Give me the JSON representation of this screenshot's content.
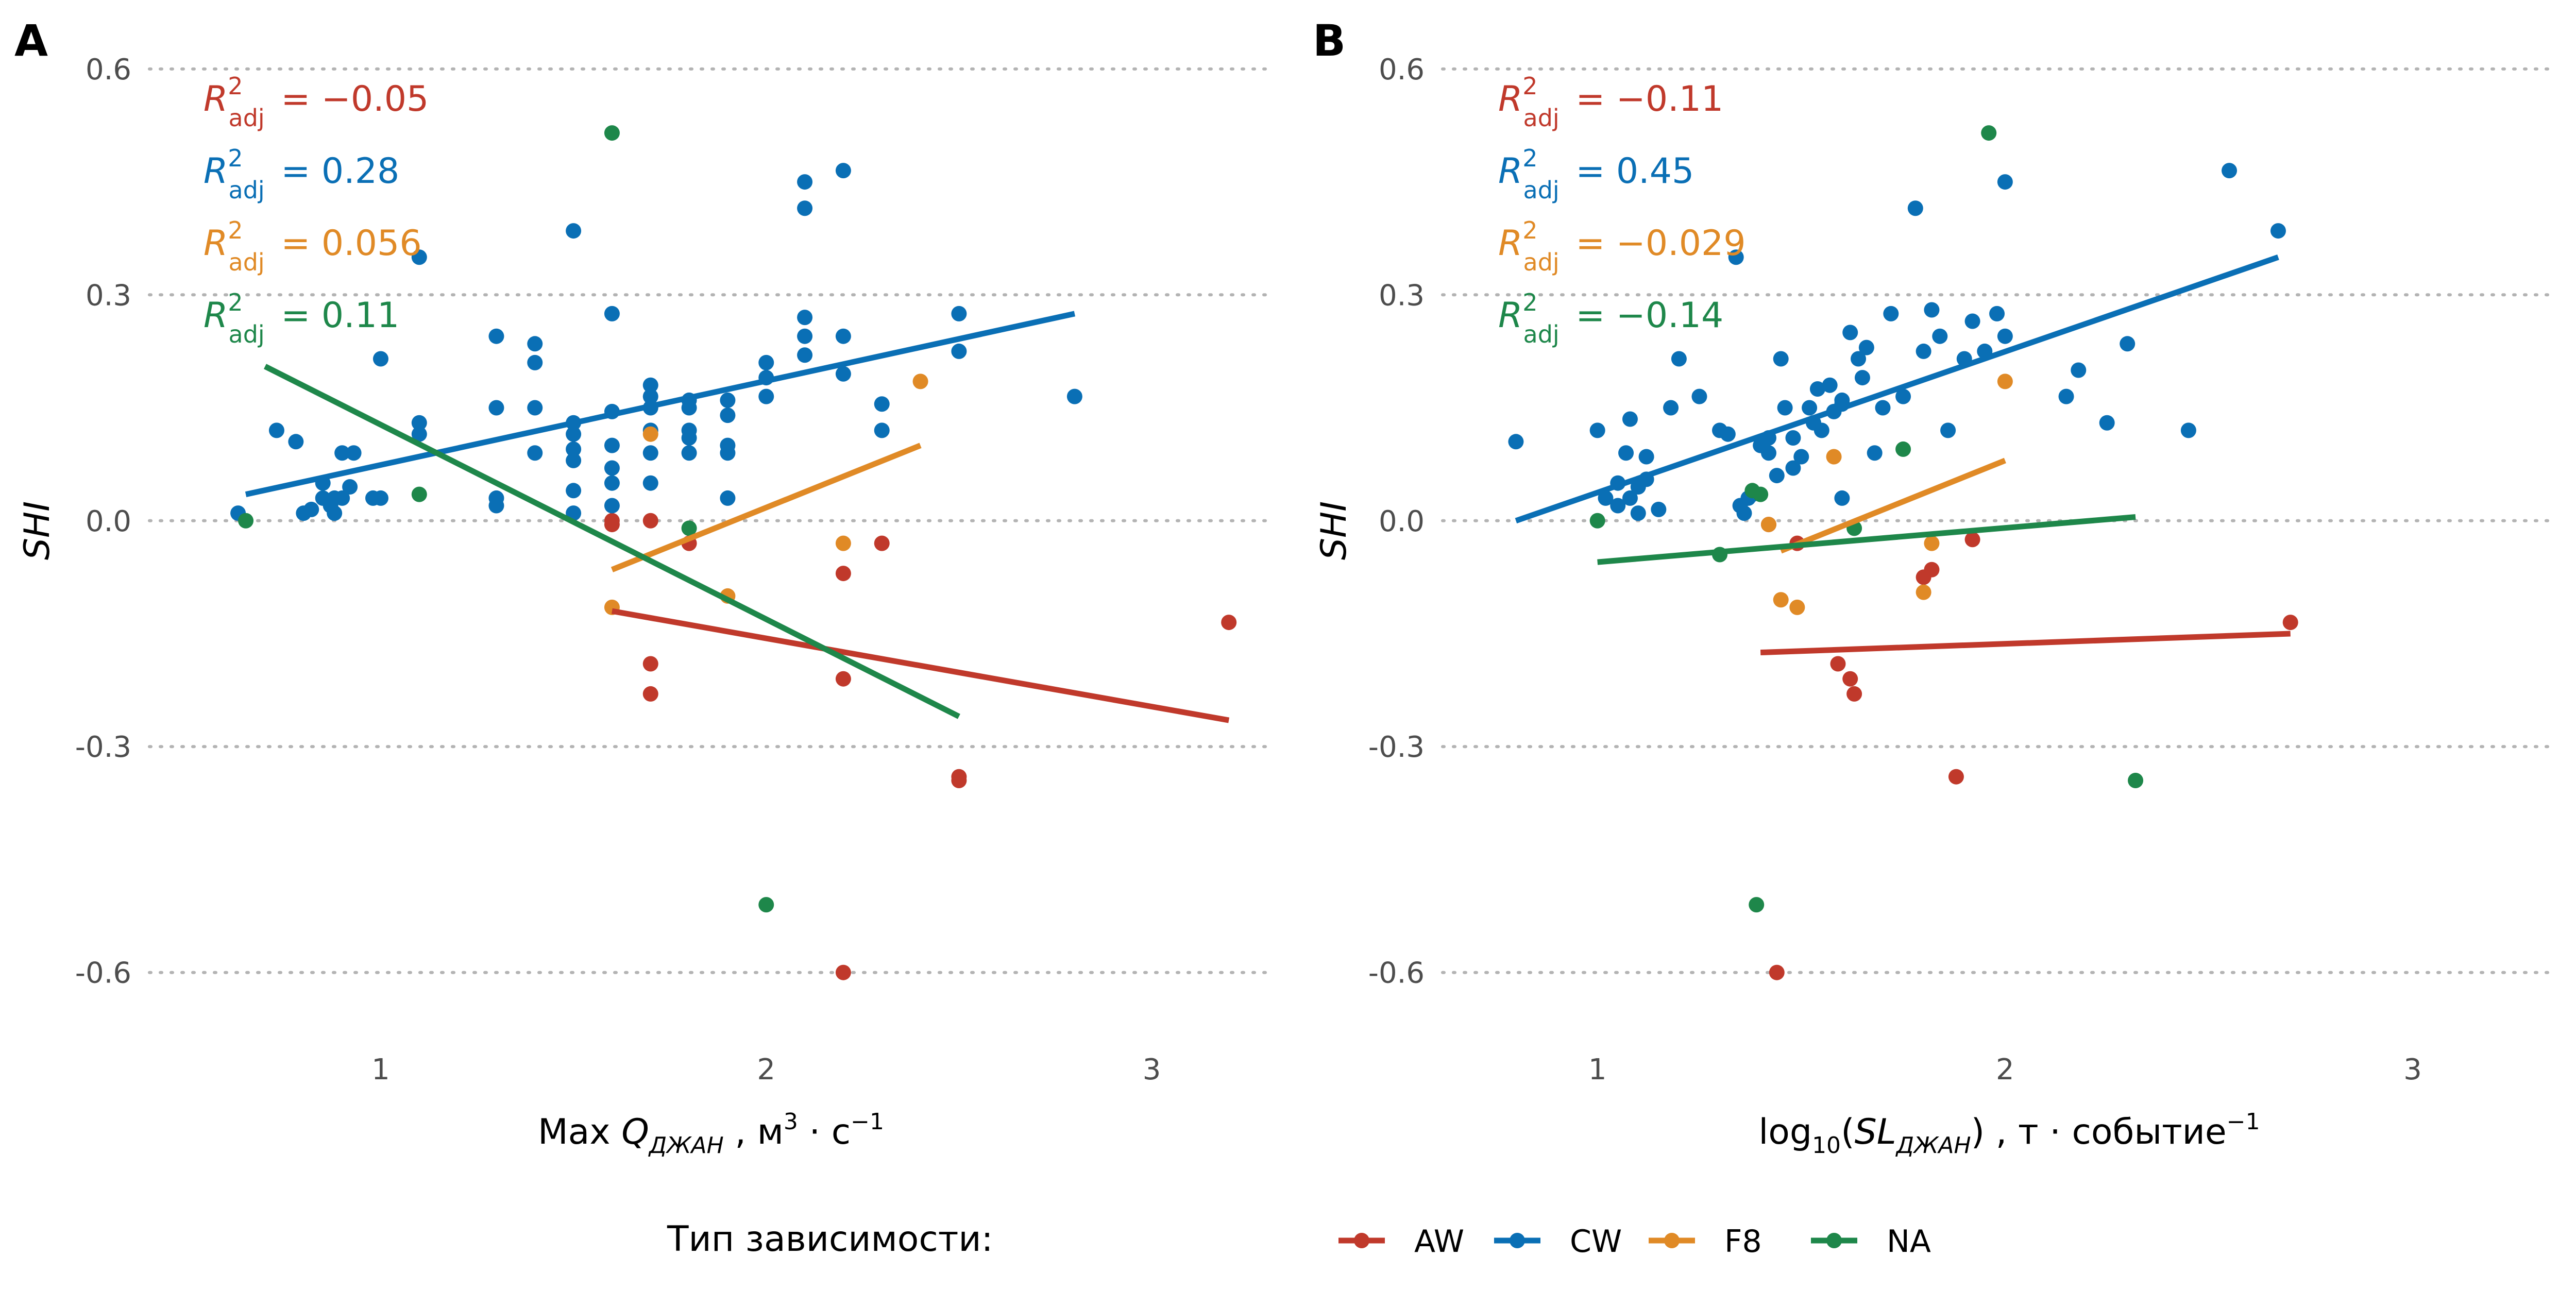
{
  "colors": {
    "AW": "#c0392b",
    "CW": "#0a6fb5",
    "F8": "#e08a26",
    "NA": "#1e874a",
    "grid": "#b3b3b3"
  },
  "legend": {
    "title": "Тип зависимости:",
    "items": [
      {
        "key": "AW",
        "label": "AW"
      },
      {
        "key": "CW",
        "label": "CW"
      },
      {
        "key": "F8",
        "label": "F8"
      },
      {
        "key": "NA",
        "label": "NA"
      }
    ]
  },
  "chart_data": [
    {
      "type": "scatter",
      "panel": "A",
      "xlabel": "Max Q_ДЖАН , м³ · с⁻¹",
      "xlabel_parts": {
        "pre": "Max ",
        "var": "Q",
        "sub": "ДЖАН",
        "mid": " , м",
        "sup1": "3",
        "mid2": " · с",
        "sup2": "−1"
      },
      "ylabel": "SHI",
      "xlim": [
        0.4,
        3.3
      ],
      "ylim": [
        -0.67,
        0.63
      ],
      "xticks": [
        1,
        2,
        3
      ],
      "yticks": [
        0.6,
        0.3,
        0.0,
        -0.3,
        -0.6
      ],
      "ytick_labels": [
        "0.6",
        "0.3",
        "0.0",
        "-0.3",
        "-0.6"
      ],
      "grid": "horizontal dotted",
      "r2": [
        {
          "group": "AW",
          "label": "R²adj",
          "value": "= −0.05"
        },
        {
          "group": "CW",
          "label": "R²adj",
          "value": "= 0.28"
        },
        {
          "group": "F8",
          "label": "R²adj",
          "value": "= 0.056"
        },
        {
          "group": "NA",
          "label": "R²adj",
          "value": "= 0.11"
        }
      ],
      "lines": [
        {
          "group": "AW",
          "x": [
            1.6,
            3.2
          ],
          "y": [
            -0.12,
            -0.265
          ]
        },
        {
          "group": "CW",
          "x": [
            0.65,
            2.8
          ],
          "y": [
            0.035,
            0.275
          ]
        },
        {
          "group": "F8",
          "x": [
            1.6,
            2.4
          ],
          "y": [
            -0.065,
            0.1
          ]
        },
        {
          "group": "NA",
          "x": [
            0.7,
            2.5
          ],
          "y": [
            0.205,
            -0.26
          ]
        }
      ],
      "points": {
        "AW": [
          [
            1.6,
            0.0
          ],
          [
            1.6,
            -0.005
          ],
          [
            1.7,
            0.0
          ],
          [
            1.8,
            -0.03
          ],
          [
            1.7,
            -0.19
          ],
          [
            1.7,
            -0.23
          ],
          [
            2.2,
            -0.07
          ],
          [
            2.3,
            -0.03
          ],
          [
            2.2,
            -0.21
          ],
          [
            2.5,
            -0.34
          ],
          [
            2.5,
            -0.345
          ],
          [
            2.2,
            -0.6
          ],
          [
            3.2,
            -0.135
          ]
        ],
        "CW": [
          [
            0.63,
            0.01
          ],
          [
            0.73,
            0.12
          ],
          [
            0.78,
            0.105
          ],
          [
            0.8,
            0.01
          ],
          [
            0.82,
            0.015
          ],
          [
            0.85,
            0.03
          ],
          [
            0.85,
            0.05
          ],
          [
            0.87,
            0.02
          ],
          [
            0.88,
            0.03
          ],
          [
            0.88,
            0.01
          ],
          [
            0.9,
            0.09
          ],
          [
            0.9,
            0.03
          ],
          [
            0.92,
            0.045
          ],
          [
            0.93,
            0.09
          ],
          [
            0.98,
            0.03
          ],
          [
            1.0,
            0.215
          ],
          [
            1.0,
            0.03
          ],
          [
            1.1,
            0.13
          ],
          [
            1.1,
            0.115
          ],
          [
            1.1,
            0.35
          ],
          [
            1.3,
            0.245
          ],
          [
            1.3,
            0.15
          ],
          [
            1.3,
            0.03
          ],
          [
            1.3,
            0.02
          ],
          [
            1.4,
            0.235
          ],
          [
            1.4,
            0.21
          ],
          [
            1.4,
            0.15
          ],
          [
            1.4,
            0.09
          ],
          [
            1.5,
            0.385
          ],
          [
            1.5,
            0.13
          ],
          [
            1.5,
            0.115
          ],
          [
            1.5,
            0.095
          ],
          [
            1.5,
            0.08
          ],
          [
            1.5,
            0.04
          ],
          [
            1.5,
            0.01
          ],
          [
            1.6,
            0.275
          ],
          [
            1.6,
            0.145
          ],
          [
            1.6,
            0.1
          ],
          [
            1.6,
            0.07
          ],
          [
            1.6,
            0.05
          ],
          [
            1.6,
            0.02
          ],
          [
            1.7,
            0.18
          ],
          [
            1.7,
            0.165
          ],
          [
            1.7,
            0.15
          ],
          [
            1.7,
            0.12
          ],
          [
            1.7,
            0.09
          ],
          [
            1.7,
            0.05
          ],
          [
            1.8,
            0.16
          ],
          [
            1.8,
            0.15
          ],
          [
            1.8,
            0.12
          ],
          [
            1.8,
            0.11
          ],
          [
            1.8,
            0.09
          ],
          [
            1.9,
            0.16
          ],
          [
            1.9,
            0.14
          ],
          [
            1.9,
            0.1
          ],
          [
            1.9,
            0.09
          ],
          [
            1.9,
            0.03
          ],
          [
            2.0,
            0.21
          ],
          [
            2.0,
            0.19
          ],
          [
            2.0,
            0.165
          ],
          [
            2.1,
            0.45
          ],
          [
            2.1,
            0.415
          ],
          [
            2.1,
            0.27
          ],
          [
            2.1,
            0.245
          ],
          [
            2.1,
            0.22
          ],
          [
            2.2,
            0.465
          ],
          [
            2.2,
            0.245
          ],
          [
            2.2,
            0.195
          ],
          [
            2.3,
            0.155
          ],
          [
            2.3,
            0.12
          ],
          [
            2.5,
            0.275
          ],
          [
            2.5,
            0.225
          ],
          [
            2.8,
            0.165
          ]
        ],
        "F8": [
          [
            1.6,
            -0.115
          ],
          [
            1.7,
            0.115
          ],
          [
            1.9,
            -0.1
          ],
          [
            2.2,
            -0.03
          ],
          [
            2.4,
            0.185
          ]
        ],
        "NA": [
          [
            0.65,
            0.0
          ],
          [
            1.1,
            0.035
          ],
          [
            1.6,
            0.515
          ],
          [
            1.8,
            -0.01
          ],
          [
            2.0,
            -0.51
          ]
        ]
      }
    },
    {
      "type": "scatter",
      "panel": "B",
      "xlabel": "log10(SL_ДЖАН) , т · событие⁻¹",
      "xlabel_parts": {
        "pre": "log",
        "sub10": "10",
        "open": "(",
        "var": "SL",
        "sub": "ДЖАН",
        "close": ")",
        "mid": " , т · событие",
        "sup": "−1"
      },
      "ylabel": "SHI",
      "xlim": [
        0.62,
        3.35
      ],
      "ylim": [
        -0.67,
        0.63
      ],
      "xticks": [
        1,
        2,
        3
      ],
      "yticks": [
        0.6,
        0.3,
        0.0,
        -0.3,
        -0.6
      ],
      "ytick_labels": [
        "0.6",
        "0.3",
        "0.0",
        "-0.3",
        "-0.6"
      ],
      "grid": "horizontal dotted",
      "r2": [
        {
          "group": "AW",
          "label": "R²adj",
          "value": "= −0.11"
        },
        {
          "group": "CW",
          "label": "R²adj",
          "value": "= 0.45"
        },
        {
          "group": "F8",
          "label": "R²adj",
          "value": "= −0.029"
        },
        {
          "group": "NA",
          "label": "R²adj",
          "value": "= −0.14"
        }
      ],
      "lines": [
        {
          "group": "AW",
          "x": [
            1.4,
            2.7
          ],
          "y": [
            -0.175,
            -0.15
          ]
        },
        {
          "group": "CW",
          "x": [
            0.8,
            2.67
          ],
          "y": [
            0.0,
            0.35
          ]
        },
        {
          "group": "F8",
          "x": [
            1.45,
            2.0
          ],
          "y": [
            -0.04,
            0.08
          ]
        },
        {
          "group": "NA",
          "x": [
            1.0,
            2.32
          ],
          "y": [
            -0.055,
            0.005
          ]
        }
      ],
      "points": {
        "AW": [
          [
            1.42,
            -0.005
          ],
          [
            1.49,
            -0.03
          ],
          [
            1.59,
            -0.19
          ],
          [
            1.62,
            -0.21
          ],
          [
            1.63,
            -0.23
          ],
          [
            1.8,
            -0.075
          ],
          [
            1.82,
            -0.065
          ],
          [
            1.88,
            -0.34
          ],
          [
            1.92,
            -0.025
          ],
          [
            1.44,
            -0.6
          ],
          [
            2.7,
            -0.135
          ]
        ],
        "CW": [
          [
            0.8,
            0.105
          ],
          [
            1.0,
            0.12
          ],
          [
            1.02,
            0.03
          ],
          [
            1.05,
            0.05
          ],
          [
            1.05,
            0.02
          ],
          [
            1.07,
            0.09
          ],
          [
            1.08,
            0.135
          ],
          [
            1.08,
            0.03
          ],
          [
            1.1,
            0.045
          ],
          [
            1.1,
            0.01
          ],
          [
            1.12,
            0.085
          ],
          [
            1.12,
            0.055
          ],
          [
            1.15,
            0.015
          ],
          [
            1.18,
            0.15
          ],
          [
            1.2,
            0.215
          ],
          [
            1.25,
            0.165
          ],
          [
            1.3,
            0.12
          ],
          [
            1.32,
            0.115
          ],
          [
            1.34,
            0.35
          ],
          [
            1.35,
            0.02
          ],
          [
            1.36,
            0.01
          ],
          [
            1.37,
            0.03
          ],
          [
            1.38,
            0.035
          ],
          [
            1.4,
            0.1
          ],
          [
            1.42,
            0.11
          ],
          [
            1.42,
            0.09
          ],
          [
            1.44,
            0.06
          ],
          [
            1.45,
            0.215
          ],
          [
            1.46,
            0.15
          ],
          [
            1.48,
            0.11
          ],
          [
            1.48,
            0.07
          ],
          [
            1.5,
            0.085
          ],
          [
            1.52,
            0.15
          ],
          [
            1.53,
            0.13
          ],
          [
            1.54,
            0.175
          ],
          [
            1.55,
            0.12
          ],
          [
            1.57,
            0.18
          ],
          [
            1.58,
            0.145
          ],
          [
            1.6,
            0.16
          ],
          [
            1.6,
            0.155
          ],
          [
            1.6,
            0.03
          ],
          [
            1.62,
            0.25
          ],
          [
            1.64,
            0.215
          ],
          [
            1.65,
            0.19
          ],
          [
            1.66,
            0.23
          ],
          [
            1.68,
            0.09
          ],
          [
            1.7,
            0.15
          ],
          [
            1.72,
            0.275
          ],
          [
            1.75,
            0.165
          ],
          [
            1.78,
            0.415
          ],
          [
            1.8,
            0.225
          ],
          [
            1.82,
            0.28
          ],
          [
            1.84,
            0.245
          ],
          [
            1.86,
            0.12
          ],
          [
            1.9,
            0.215
          ],
          [
            1.92,
            0.265
          ],
          [
            1.95,
            0.225
          ],
          [
            1.98,
            0.275
          ],
          [
            2.0,
            0.45
          ],
          [
            2.0,
            0.245
          ],
          [
            2.15,
            0.165
          ],
          [
            2.18,
            0.2
          ],
          [
            2.25,
            0.13
          ],
          [
            2.3,
            0.235
          ],
          [
            2.45,
            0.12
          ],
          [
            2.55,
            0.465
          ],
          [
            2.67,
            0.385
          ]
        ],
        "F8": [
          [
            1.42,
            -0.005
          ],
          [
            1.45,
            -0.105
          ],
          [
            1.49,
            -0.115
          ],
          [
            1.58,
            0.085
          ],
          [
            1.8,
            -0.095
          ],
          [
            1.82,
            -0.03
          ],
          [
            2.0,
            0.185
          ]
        ],
        "NA": [
          [
            1.0,
            0.0
          ],
          [
            1.3,
            -0.045
          ],
          [
            1.38,
            0.04
          ],
          [
            1.4,
            0.035
          ],
          [
            1.39,
            -0.51
          ],
          [
            1.63,
            -0.01
          ],
          [
            1.75,
            0.095
          ],
          [
            1.96,
            0.515
          ],
          [
            2.32,
            -0.345
          ]
        ]
      }
    }
  ]
}
